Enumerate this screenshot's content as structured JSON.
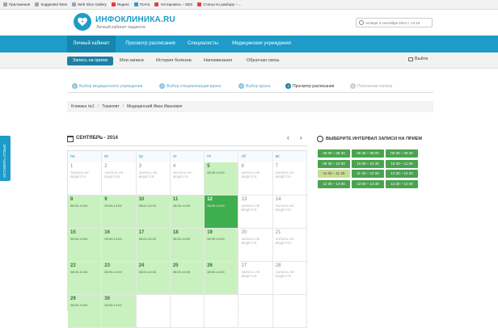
{
  "bookmarks": [
    "Приложения",
    "Suggested Sites",
    "Web Slice Gallery",
    "Яндекс",
    "Почта",
    "тестировать – SDS",
    "Статьи по разбору – ..."
  ],
  "header": {
    "logo_title": "ИНФОКЛИНИКА.RU",
    "logo_subtitle": "Личный кабинет пациента",
    "datetime": "четверг 4 сентября 2014 г. 14:16"
  },
  "main_nav": [
    "Личный кабинет",
    "Просмотр расписания",
    "Специалисты",
    "Медицинские учреждения"
  ],
  "sub_nav": [
    "Запись на прием",
    "Мои записи",
    "История болезни",
    "Напоминания",
    "Обратная связь"
  ],
  "exit_label": "Выйти",
  "steps": [
    {
      "num": "1",
      "label": "Выбор медицинского учреждения"
    },
    {
      "num": "2",
      "label": "Выбор специализации врача"
    },
    {
      "num": "3",
      "label": "Выбор врача"
    },
    {
      "num": "4",
      "label": "Просмотр расписания"
    },
    {
      "num": "5",
      "label": "Получение талона"
    }
  ],
  "breadcrumb": [
    "Клиника №1",
    "Терапевт",
    "Медицинский Иван Иванович"
  ],
  "breadcrumb_sep": "/",
  "feedback_tab": "ОСТАВИТЬ ОТЗЫВ",
  "calendar": {
    "title": "СЕНТЯБРЬ - 2014",
    "prev": "‹",
    "next": "›",
    "weekdays": [
      "пн",
      "вт",
      "ср",
      "чт",
      "пт",
      "сб",
      "вс"
    ],
    "no_record_text": "ЗАПИСЬ НЕ ВЕДЕТСЯ",
    "hours_text": "08:00-14:00",
    "days": [
      {
        "d": "1",
        "s": "plain"
      },
      {
        "d": "2",
        "s": "plain"
      },
      {
        "d": "3",
        "s": "plain"
      },
      {
        "d": "4",
        "s": "plain"
      },
      {
        "d": "5",
        "s": "open"
      },
      {
        "d": "6",
        "s": "plain"
      },
      {
        "d": "7",
        "s": "plain"
      },
      {
        "d": "8",
        "s": "open"
      },
      {
        "d": "9",
        "s": "open"
      },
      {
        "d": "10",
        "s": "open"
      },
      {
        "d": "11",
        "s": "open"
      },
      {
        "d": "12",
        "s": "sel"
      },
      {
        "d": "13",
        "s": "plain"
      },
      {
        "d": "14",
        "s": "plain"
      },
      {
        "d": "15",
        "s": "open"
      },
      {
        "d": "16",
        "s": "open"
      },
      {
        "d": "17",
        "s": "open"
      },
      {
        "d": "18",
        "s": "open"
      },
      {
        "d": "19",
        "s": "open"
      },
      {
        "d": "20",
        "s": "plain"
      },
      {
        "d": "21",
        "s": "plain"
      },
      {
        "d": "22",
        "s": "open"
      },
      {
        "d": "23",
        "s": "open"
      },
      {
        "d": "24",
        "s": "open"
      },
      {
        "d": "25",
        "s": "open"
      },
      {
        "d": "26",
        "s": "open"
      },
      {
        "d": "27",
        "s": "plain"
      },
      {
        "d": "28",
        "s": "plain"
      },
      {
        "d": "29",
        "s": "open"
      },
      {
        "d": "30",
        "s": "open"
      }
    ]
  },
  "slots_title": "ВЫБЕРИТЕ ИНТЕРВАЛ ЗАПИСИ НА ПРИЕМ",
  "slots": [
    {
      "label": "08 00 – 08 30",
      "busy": false
    },
    {
      "label": "08 30 – 09 00",
      "busy": false
    },
    {
      "label": "09 00 – 09 30",
      "busy": false
    },
    {
      "label": "09 30 – 10 00",
      "busy": false
    },
    {
      "label": "10 00 – 10 30",
      "busy": false
    },
    {
      "label": "10 30 – 11 00",
      "busy": false
    },
    {
      "label": "11 00 – 11 30",
      "busy": true
    },
    {
      "label": "11 30 – 12 00",
      "busy": false
    },
    {
      "label": "12 00 – 12 30",
      "busy": false
    },
    {
      "label": "12 30 – 13 00",
      "busy": false
    },
    {
      "label": "13 00 – 13 30",
      "busy": false
    },
    {
      "label": "13 30 – 14 00",
      "busy": false
    }
  ],
  "colors": {
    "brand": "#1e9bc8",
    "open_day": "#c9f1bf",
    "selected_day": "#3fae4f",
    "slot": "#4aa34f",
    "slot_busy": "#c8dc8e"
  }
}
